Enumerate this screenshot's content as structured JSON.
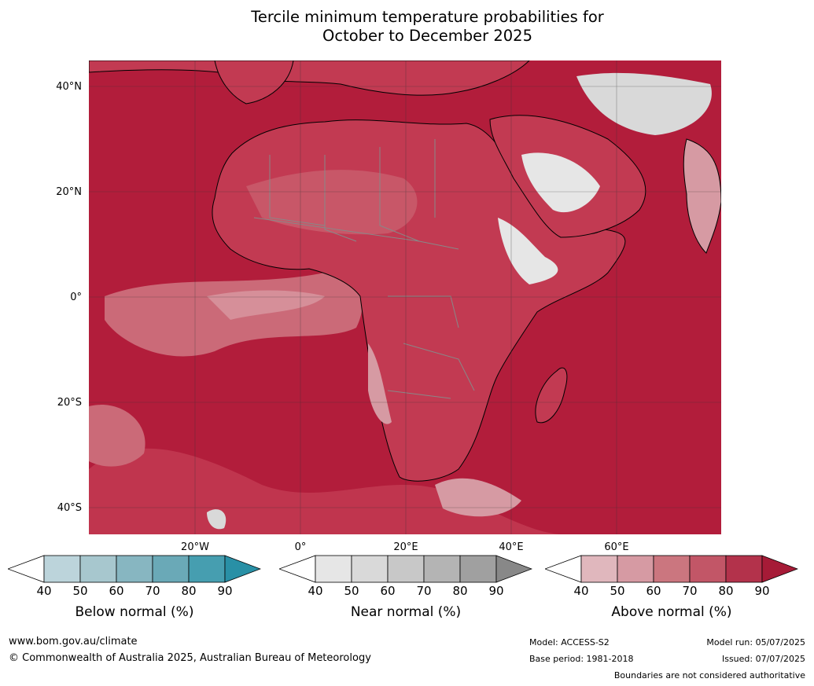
{
  "title": {
    "line1": "Tercile minimum temperature probabilities for",
    "line2": "October to December 2025"
  },
  "map": {
    "lat_labels": [
      "40°N",
      "20°N",
      "0°",
      "20°S",
      "40°S"
    ],
    "lon_labels": [
      "20°W",
      "0°",
      "20°E",
      "40°E",
      "60°E"
    ],
    "ocean_color": "#b21d3b",
    "land_color": "#c23a52",
    "dry_land_color": "#e6e6e6",
    "coast_color": "#000000",
    "border_color": "#888888"
  },
  "colorbars": [
    {
      "name": "Below normal (%)",
      "ticks": [
        "40",
        "50",
        "60",
        "70",
        "80",
        "90"
      ],
      "colors": [
        "#ffffff",
        "#bcd4db",
        "#a7c7ce",
        "#87b6c1",
        "#6aa9b7",
        "#469eb0",
        "#2990a6"
      ]
    },
    {
      "name": "Near normal (%)",
      "ticks": [
        "40",
        "50",
        "60",
        "70",
        "80",
        "90"
      ],
      "colors": [
        "#ffffff",
        "#e6e6e6",
        "#d9d9d9",
        "#c8c8c8",
        "#b4b4b4",
        "#a0a0a0",
        "#888888"
      ]
    },
    {
      "name": "Above normal (%)",
      "ticks": [
        "40",
        "50",
        "60",
        "70",
        "80",
        "90"
      ],
      "colors": [
        "#ffffff",
        "#e0b7bd",
        "#d69aa3",
        "#cb767f",
        "#c25667",
        "#b3324b",
        "#a61b37"
      ]
    }
  ],
  "footer": {
    "url": "www.bom.gov.au/climate",
    "copyright": "© Commonwealth of Australia 2025, Australian Bureau of Meteorology",
    "model": "Model: ACCESS-S2",
    "base_period": "Base period: 1981-2018",
    "model_run": "Model run: 05/07/2025",
    "issued": "Issued: 07/07/2025",
    "boundaries": "Boundaries are not considered authoritative"
  }
}
